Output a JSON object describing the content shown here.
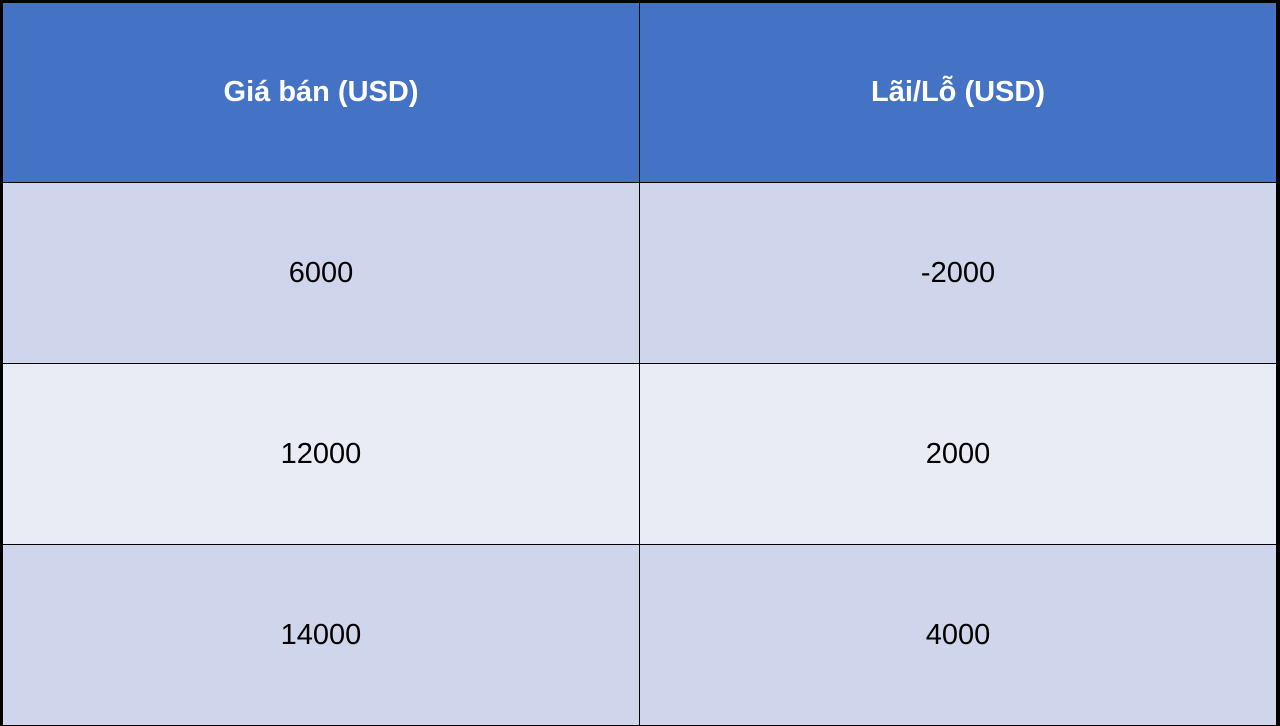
{
  "table": {
    "headers": [
      "Giá bán (USD)",
      "Lãi/Lỗ (USD)"
    ],
    "rows": [
      [
        "6000",
        "-2000"
      ],
      [
        "12000",
        "2000"
      ],
      [
        "14000",
        "4000"
      ]
    ]
  },
  "colors": {
    "header": "#4472c4",
    "row_dark": "#cfd5ea",
    "row_light": "#e9ebf5"
  }
}
